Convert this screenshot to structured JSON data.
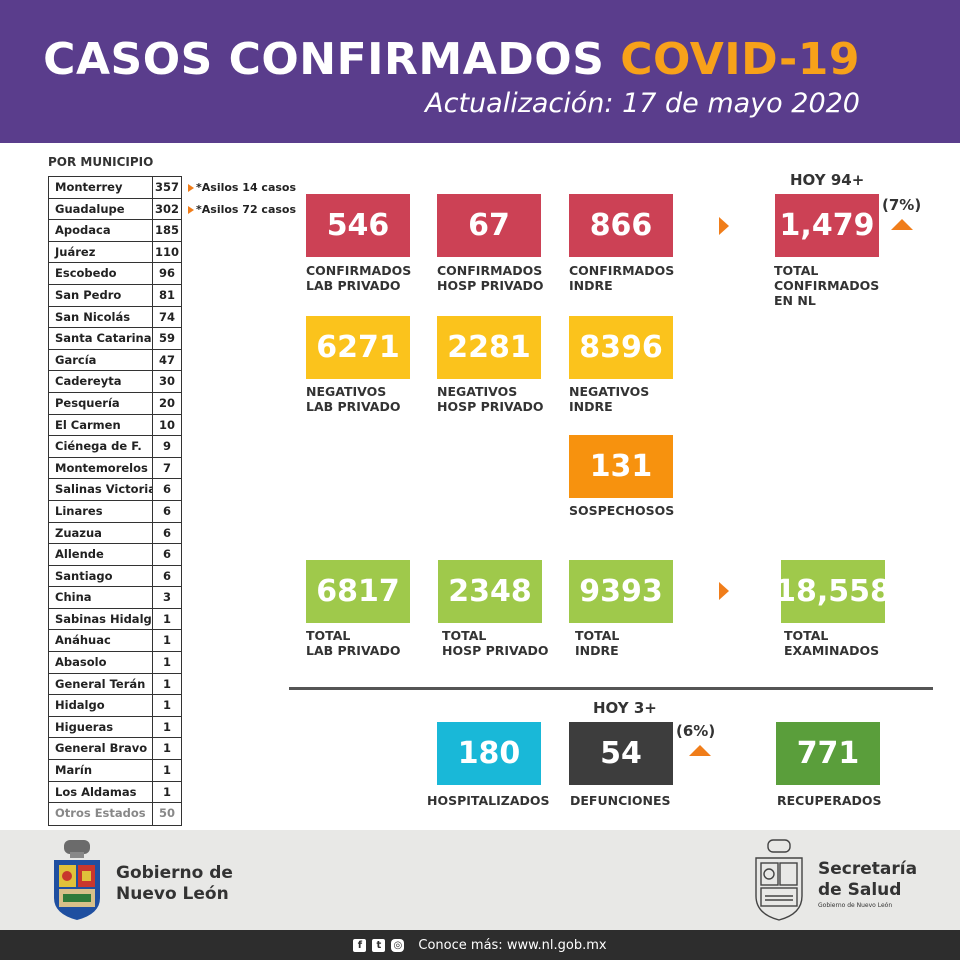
{
  "header": {
    "title_main": "CASOS CONFIRMADOS",
    "title_accent": "COVID-19",
    "subtitle": "Actualización: 17 de mayo 2020"
  },
  "municipios": {
    "title": "POR MUNICIPIO",
    "rows": [
      {
        "name": "Monterrey",
        "value": "357"
      },
      {
        "name": "Guadalupe",
        "value": "302"
      },
      {
        "name": "Apodaca",
        "value": "185"
      },
      {
        "name": "Juárez",
        "value": "110"
      },
      {
        "name": "Escobedo",
        "value": "96"
      },
      {
        "name": "San Pedro",
        "value": "81"
      },
      {
        "name": "San Nicolás",
        "value": "74"
      },
      {
        "name": "Santa Catarina",
        "value": "59"
      },
      {
        "name": "García",
        "value": "47"
      },
      {
        "name": "Cadereyta",
        "value": "30"
      },
      {
        "name": "Pesquería",
        "value": "20"
      },
      {
        "name": "El Carmen",
        "value": "10"
      },
      {
        "name": "Ciénega de F.",
        "value": "9"
      },
      {
        "name": "Montemorelos",
        "value": "7"
      },
      {
        "name": "Salinas Victoria",
        "value": "6"
      },
      {
        "name": "Linares",
        "value": "6"
      },
      {
        "name": "Zuazua",
        "value": "6"
      },
      {
        "name": "Allende",
        "value": "6"
      },
      {
        "name": "Santiago",
        "value": "6"
      },
      {
        "name": "China",
        "value": "3"
      },
      {
        "name": "Sabinas Hidalgo",
        "value": "1"
      },
      {
        "name": "Anáhuac",
        "value": "1"
      },
      {
        "name": "Abasolo",
        "value": "1"
      },
      {
        "name": "General Terán",
        "value": "1"
      },
      {
        "name": "Hidalgo",
        "value": "1"
      },
      {
        "name": "Higueras",
        "value": "1"
      },
      {
        "name": "General Bravo",
        "value": "1"
      },
      {
        "name": "Marín",
        "value": "1"
      },
      {
        "name": "Los Aldamas",
        "value": "1"
      },
      {
        "name": "Otros Estados",
        "value": "50"
      }
    ],
    "notes": [
      "*Asilos 14 casos",
      "*Asilos 72 casos"
    ]
  },
  "confirmados": {
    "hoy": "HOY 94+",
    "pct": "(7%)",
    "items": [
      {
        "value": "546",
        "label": "CONFIRMADOS\nLAB PRIVADO"
      },
      {
        "value": "67",
        "label": "CONFIRMADOS\nHOSP PRIVADO"
      },
      {
        "value": "866",
        "label": "CONFIRMADOS\nINDRE"
      }
    ],
    "total": {
      "value": "1,479",
      "label": "TOTAL\nCONFIRMADOS\nEN NL"
    }
  },
  "negativos": {
    "items": [
      {
        "value": "6271",
        "label": "NEGATIVOS\nLAB PRIVADO"
      },
      {
        "value": "2281",
        "label": "NEGATIVOS\nHOSP PRIVADO"
      },
      {
        "value": "8396",
        "label": "NEGATIVOS\nINDRE"
      }
    ]
  },
  "sospechosos": {
    "value": "131",
    "label": "SOSPECHOSOS"
  },
  "totales": {
    "items": [
      {
        "value": "6817",
        "label": "TOTAL\nLAB PRIVADO"
      },
      {
        "value": "2348",
        "label": "TOTAL\nHOSP PRIVADO"
      },
      {
        "value": "9393",
        "label": "TOTAL\nINDRE"
      }
    ],
    "examinados": {
      "value": "18,558",
      "label": "TOTAL\nEXAMINADOS"
    }
  },
  "estado": {
    "hoy": "HOY 3+",
    "pct": "(6%)",
    "hospitalizados": {
      "value": "180",
      "label": "HOSPITALIZADOS"
    },
    "defunciones": {
      "value": "54",
      "label": "DEFUNCIONES"
    },
    "recuperados": {
      "value": "771",
      "label": "RECUPERADOS"
    }
  },
  "footer": {
    "gobierno": "Gobierno de\nNuevo León",
    "secretaria": "Secretaría\nde Salud",
    "secretaria_sub": "Gobierno de Nuevo León",
    "bar_text": "Conoce más: www.nl.gob.mx",
    "social": [
      "facebook-icon",
      "twitter-icon",
      "instagram-icon"
    ]
  },
  "colors": {
    "header": "#5a3d8c",
    "accent": "#f7a11a",
    "red": "#cc4155",
    "yellow": "#fbc31c",
    "orange": "#f7920e",
    "green": "#9fc94b",
    "cyan": "#19b8d8",
    "dark": "#3d3d3d",
    "dark_green": "#5a9e3b"
  }
}
